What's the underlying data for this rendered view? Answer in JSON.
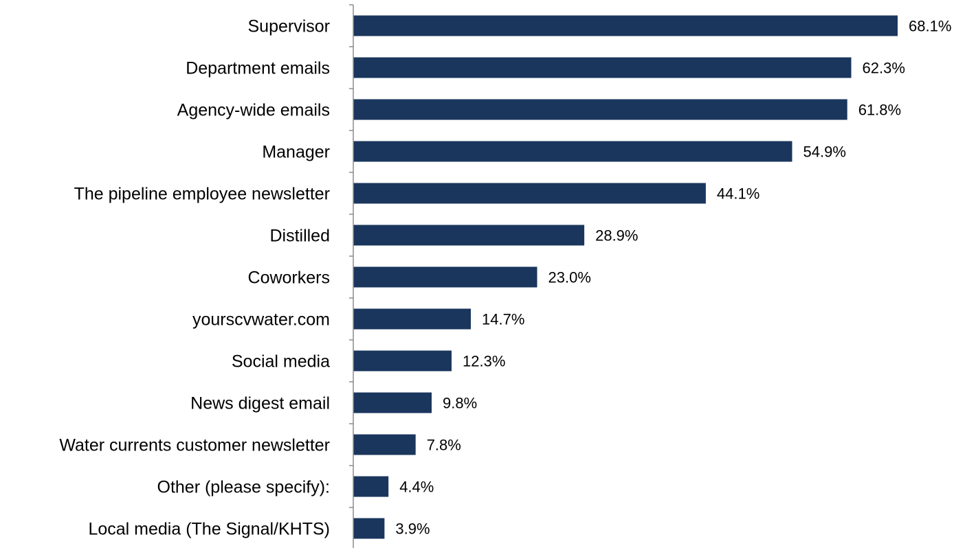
{
  "chart_data": {
    "type": "bar",
    "orientation": "horizontal",
    "title": "",
    "xlabel": "",
    "ylabel": "",
    "categories": [
      "Supervisor",
      "Department emails",
      "Agency-wide emails",
      "Manager",
      "The pipeline employee newsletter",
      "Distilled",
      "Coworkers",
      "yourscvwater.com",
      "Social media",
      "News digest email",
      "Water currents customer newsletter",
      "Other (please specify):",
      "Local media (The Signal/KHTS)"
    ],
    "values": [
      68.1,
      62.3,
      61.8,
      54.9,
      44.1,
      28.9,
      23.0,
      14.7,
      12.3,
      9.8,
      7.8,
      4.4,
      3.9
    ],
    "value_labels": [
      "68.1%",
      "62.3%",
      "61.8%",
      "54.9%",
      "44.1%",
      "28.9%",
      "23.0%",
      "14.7%",
      "12.3%",
      "9.8%",
      "7.8%",
      "4.4%",
      "3.9%"
    ],
    "value_unit": "%",
    "xlim": [
      0,
      68.1
    ],
    "grid": false,
    "legend": "none",
    "bar_color": "#1a365d",
    "axis_color": "#8c8c8c"
  }
}
